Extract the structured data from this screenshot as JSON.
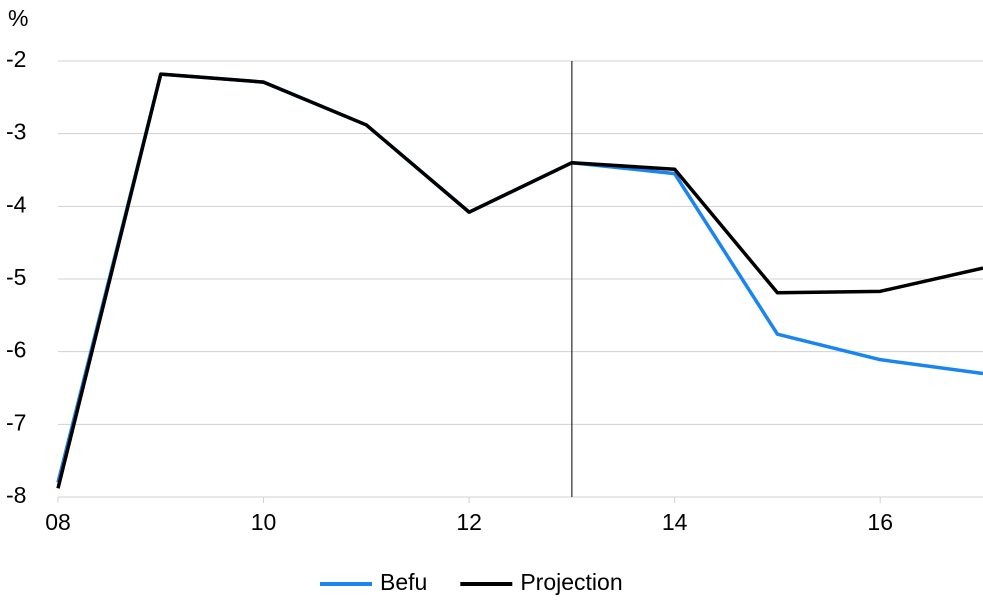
{
  "chart_data": {
    "type": "line",
    "ylabel": "%",
    "x": [
      8,
      9,
      10,
      11,
      12,
      13,
      14,
      15,
      16,
      17
    ],
    "series": [
      {
        "name": "Befu",
        "color": "#1a84f0",
        "values": [
          -7.8,
          -2.18,
          -2.29,
          -2.88,
          -4.08,
          -3.4,
          -3.55,
          -5.76,
          -6.11,
          -6.3
        ]
      },
      {
        "name": "Projection",
        "color": "#000000",
        "values": [
          -7.88,
          -2.18,
          -2.29,
          -2.88,
          -4.08,
          -3.4,
          -3.49,
          -5.19,
          -5.17,
          -4.85
        ]
      }
    ],
    "xlim": [
      8,
      17
    ],
    "xticks": [
      {
        "value": 8,
        "label": "08"
      },
      10,
      12,
      14,
      16
    ],
    "ylim": [
      -8,
      -2
    ],
    "yticks": [
      -8,
      -7,
      -6,
      -5,
      -4,
      -3,
      -2
    ],
    "vline_x": 13,
    "grid": true,
    "legend": "bottom"
  }
}
